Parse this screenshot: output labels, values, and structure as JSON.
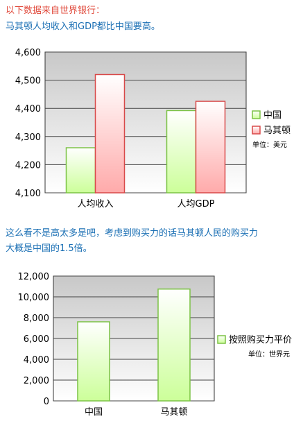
{
  "intro_text": "以下数据来自世界银行：",
  "line2_text": "马其顿人均收入和GDP都比中国要高。",
  "para_line1": "这么看不是高太多是吧，考虑到购买力的话马其顿人民的购买力",
  "para_line2": "大概是中国的1.5倍。",
  "colors": {
    "china_fill": "#ccff99",
    "china_stroke": "#7bc244",
    "mk_fill": "#ffaaaa",
    "mk_stroke": "#d84848",
    "gray_bg": "#c0c0c0"
  },
  "chart_data": [
    {
      "type": "bar",
      "categories": [
        "人均收入",
        "人均GDP"
      ],
      "series": [
        {
          "name": "中国",
          "values": [
            4260,
            4392
          ]
        },
        {
          "name": "马其顿",
          "values": [
            4520,
            4425
          ]
        }
      ],
      "ylim": [
        4100,
        4600
      ],
      "yticks": [
        4100,
        4200,
        4300,
        4400,
        4500,
        4600
      ],
      "ytick_labels": [
        "4,100",
        "4,200",
        "4,300",
        "4,400",
        "4,500",
        "4,600"
      ],
      "legend_position": "right",
      "unit_note": "单位：美元",
      "grid": true
    },
    {
      "type": "bar",
      "categories": [
        "中国",
        "马其顿"
      ],
      "series": [
        {
          "name": "按照购买力平价",
          "values": [
            7600,
            10750
          ]
        }
      ],
      "ylim": [
        0,
        12000
      ],
      "yticks": [
        0,
        2000,
        4000,
        6000,
        8000,
        10000,
        12000
      ],
      "ytick_labels": [
        "0",
        "2,000",
        "4,000",
        "6,000",
        "8,000",
        "10,000",
        "12,000"
      ],
      "legend_position": "right",
      "unit_note": "单位：世界元",
      "grid": true
    }
  ]
}
